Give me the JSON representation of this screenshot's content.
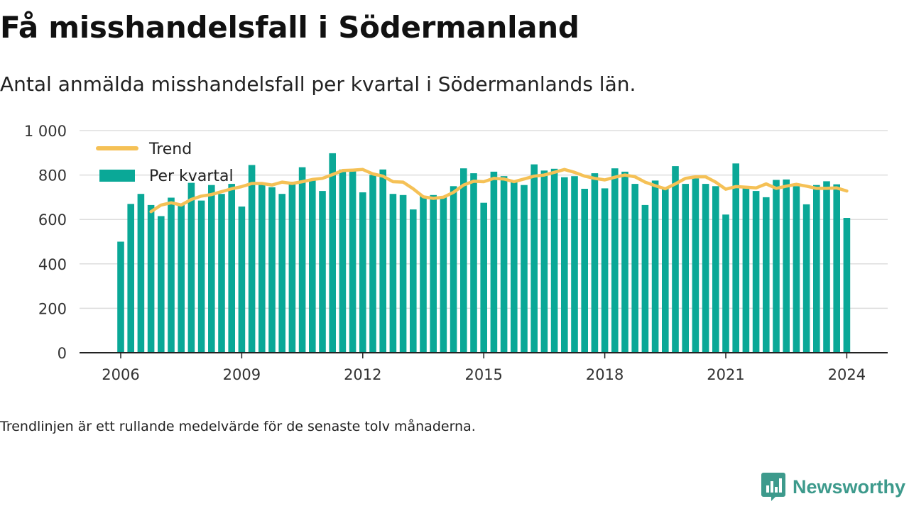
{
  "header": {
    "title": "Få misshandelsfall i Södermanland",
    "subtitle": "Antal anmälda misshandelsfall per kvartal i Södermanlands län."
  },
  "footer": {
    "note": "Trendlinjen är ett rullande medelvärde för de senaste tolv månaderna.",
    "brand": "Newsworthy"
  },
  "colors": {
    "bar": "#0aa897",
    "trend": "#f5c156",
    "grid": "#dddddd",
    "axis": "#222222",
    "brand": "#3d9a8c"
  },
  "chart_data": {
    "type": "bar",
    "title": "",
    "xlabel": "",
    "ylabel": "",
    "ylim": [
      0,
      1000
    ],
    "yticks": [
      0,
      200,
      400,
      600,
      800,
      1000
    ],
    "ytick_labels": [
      "0",
      "200",
      "400",
      "600",
      "800",
      "1 000"
    ],
    "xticks": [
      "2006",
      "2009",
      "2012",
      "2015",
      "2018",
      "2021",
      "2024"
    ],
    "grid": true,
    "legend_position": "top-left",
    "x": [
      "2006Q1",
      "2006Q2",
      "2006Q3",
      "2006Q4",
      "2007Q1",
      "2007Q2",
      "2007Q3",
      "2007Q4",
      "2008Q1",
      "2008Q2",
      "2008Q3",
      "2008Q4",
      "2009Q1",
      "2009Q2",
      "2009Q3",
      "2009Q4",
      "2010Q1",
      "2010Q2",
      "2010Q3",
      "2010Q4",
      "2011Q1",
      "2011Q2",
      "2011Q3",
      "2011Q4",
      "2012Q1",
      "2012Q2",
      "2012Q3",
      "2012Q4",
      "2013Q1",
      "2013Q2",
      "2013Q3",
      "2013Q4",
      "2014Q1",
      "2014Q2",
      "2014Q3",
      "2014Q4",
      "2015Q1",
      "2015Q2",
      "2015Q3",
      "2015Q4",
      "2016Q1",
      "2016Q2",
      "2016Q3",
      "2016Q4",
      "2017Q1",
      "2017Q2",
      "2017Q3",
      "2017Q4",
      "2018Q1",
      "2018Q2",
      "2018Q3",
      "2018Q4",
      "2019Q1",
      "2019Q2",
      "2019Q3",
      "2019Q4",
      "2020Q1",
      "2020Q2",
      "2020Q3",
      "2020Q4",
      "2021Q1",
      "2021Q2",
      "2021Q3",
      "2021Q4",
      "2022Q1",
      "2022Q2",
      "2022Q3",
      "2022Q4",
      "2023Q1",
      "2023Q2",
      "2023Q3",
      "2023Q4",
      "2024Q1"
    ],
    "series": [
      {
        "name": "Per kvartal",
        "type": "bar",
        "values": [
          500,
          670,
          715,
          665,
          615,
          698,
          665,
          765,
          685,
          755,
          715,
          760,
          658,
          845,
          760,
          745,
          715,
          770,
          835,
          775,
          728,
          898,
          825,
          825,
          722,
          800,
          825,
          715,
          710,
          645,
          705,
          710,
          700,
          750,
          830,
          808,
          675,
          815,
          795,
          775,
          755,
          848,
          820,
          828,
          790,
          795,
          738,
          808,
          740,
          830,
          815,
          760,
          665,
          775,
          740,
          840,
          760,
          785,
          760,
          750,
          622,
          852,
          740,
          728,
          700,
          778,
          780,
          750,
          668,
          755,
          772,
          758,
          607
        ]
      },
      {
        "name": "Trend",
        "type": "line",
        "values": [
          null,
          null,
          null,
          635,
          665,
          675,
          665,
          690,
          705,
          712,
          725,
          738,
          748,
          762,
          762,
          755,
          768,
          762,
          770,
          780,
          785,
          802,
          820,
          822,
          825,
          805,
          795,
          770,
          768,
          738,
          702,
          695,
          700,
          722,
          755,
          772,
          770,
          785,
          782,
          770,
          782,
          795,
          800,
          812,
          825,
          812,
          795,
          785,
          778,
          790,
          800,
          792,
          768,
          752,
          738,
          760,
          785,
          792,
          792,
          768,
          736,
          748,
          745,
          742,
          760,
          740,
          750,
          758,
          750,
          740,
          740,
          742,
          728
        ]
      }
    ]
  }
}
